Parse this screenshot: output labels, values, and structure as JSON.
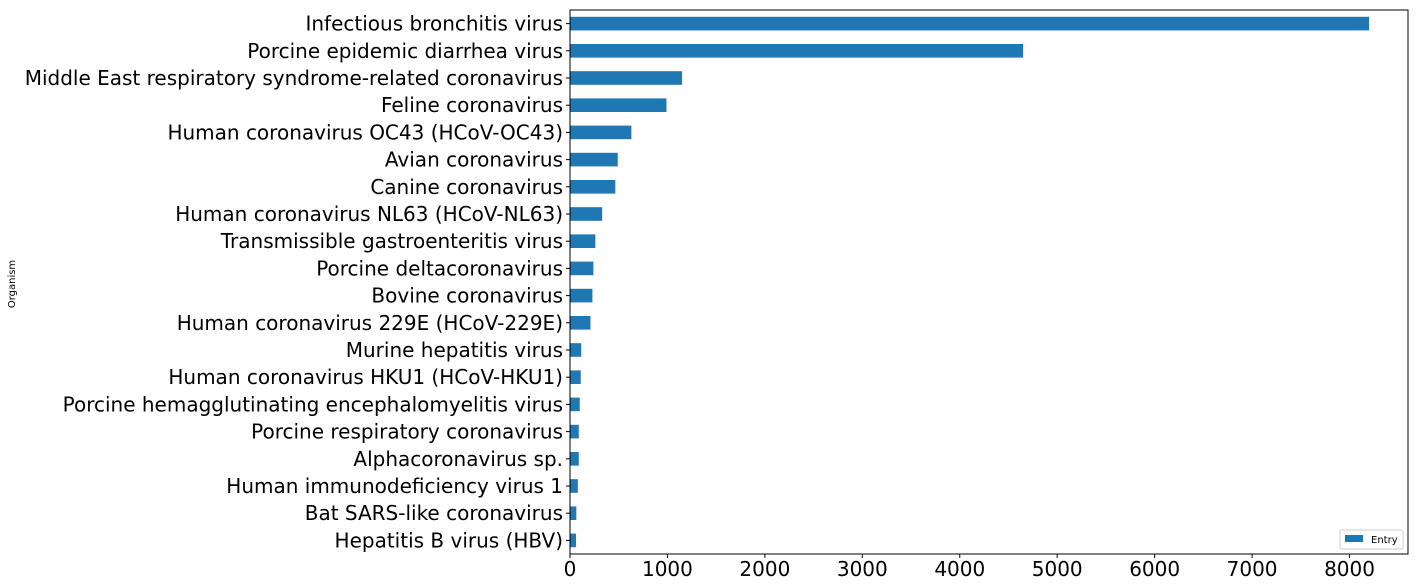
{
  "chart_data": {
    "type": "bar",
    "orientation": "horizontal",
    "title": "",
    "xlabel": "",
    "ylabel": "Organism",
    "xlim": [
      0,
      8600
    ],
    "xticks": [
      0,
      1000,
      2000,
      3000,
      4000,
      5000,
      6000,
      7000,
      8000
    ],
    "xtick_labels": [
      "0",
      "1000",
      "2000",
      "3000",
      "4000",
      "5000",
      "6000",
      "7000",
      "8000"
    ],
    "grid": false,
    "legend": {
      "position": "bottom-right",
      "entries": [
        "Entry"
      ]
    },
    "categories": [
      "Infectious bronchitis virus",
      "Porcine epidemic diarrhea virus",
      "Middle East respiratory syndrome-related coronavirus",
      "Feline coronavirus",
      "Human coronavirus OC43 (HCoV-OC43)",
      "Avian coronavirus",
      "Canine coronavirus",
      "Human coronavirus NL63 (HCoV-NL63)",
      "Transmissible gastroenteritis virus",
      "Porcine deltacoronavirus",
      "Bovine coronavirus",
      "Human coronavirus 229E (HCoV-229E)",
      "Murine hepatitis virus",
      "Human coronavirus HKU1 (HCoV-HKU1)",
      "Porcine hemagglutinating encephalomyelitis virus",
      "Porcine respiratory coronavirus",
      "Alphacoronavirus sp.",
      "Human immunodeficiency virus 1",
      "Bat SARS-like coronavirus",
      "Hepatitis B virus (HBV)"
    ],
    "series": [
      {
        "name": "Entry",
        "color": "#1f77b4",
        "values": [
          8200,
          4650,
          1150,
          990,
          630,
          490,
          465,
          330,
          260,
          240,
          230,
          210,
          115,
          110,
          100,
          90,
          90,
          80,
          65,
          62
        ]
      }
    ]
  }
}
